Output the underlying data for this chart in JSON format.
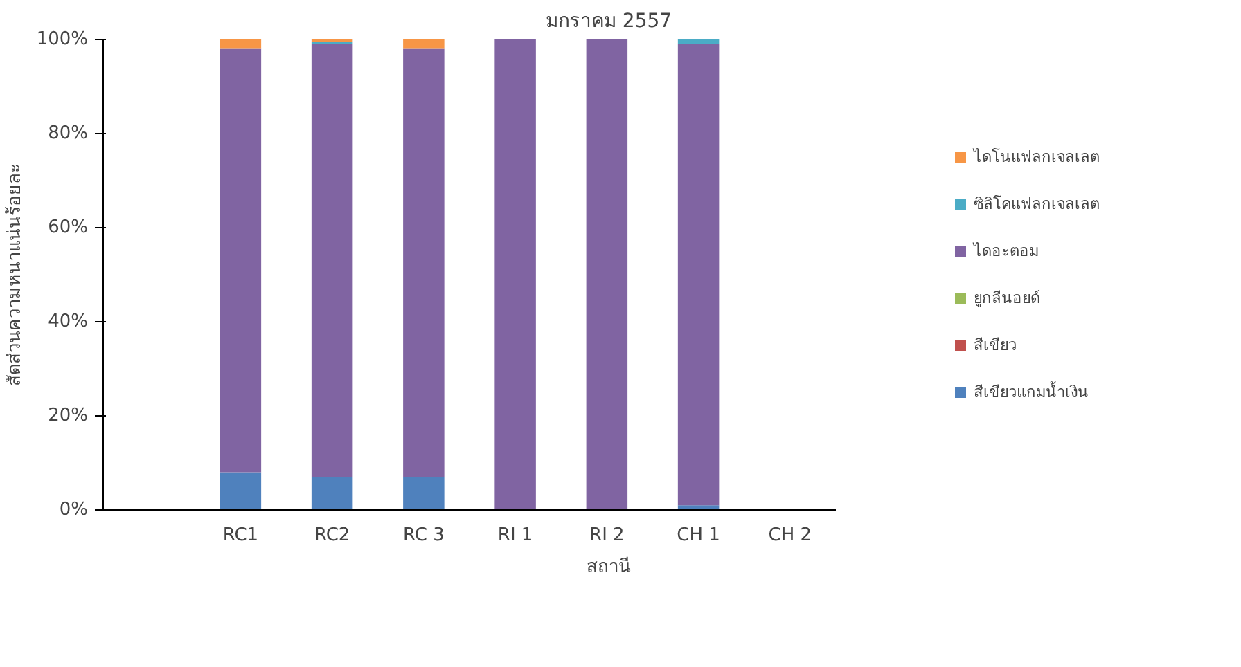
{
  "chart_data": {
    "type": "bar",
    "stacked": true,
    "title": "มกราคม 2557",
    "xlabel": "สถานี",
    "ylabel": "สัดส่วนความหนาแน่นร้อยละ",
    "categories": [
      null,
      "RC1",
      "RC2",
      "RC 3",
      "RI 1",
      "RI 2",
      "CH 1",
      "CH 2"
    ],
    "series": [
      {
        "name": "สีเขียวแกมน้ำเงิน",
        "color": "#4f81bd",
        "values": [
          0,
          8,
          7,
          7,
          0,
          0,
          1,
          0
        ]
      },
      {
        "name": "สีเขียว",
        "color": "#c0504d",
        "values": [
          0,
          0,
          0,
          0,
          0,
          0,
          0,
          0
        ]
      },
      {
        "name": "ยูกลีนอยด์",
        "color": "#9bbb59",
        "values": [
          0,
          0,
          0,
          0,
          0,
          0,
          0,
          0
        ]
      },
      {
        "name": "ไดอะตอม",
        "color": "#8064a2",
        "values": [
          0,
          90,
          92,
          91,
          100,
          100,
          98,
          0
        ]
      },
      {
        "name": "ซิลิโคแฟลกเจลเลต",
        "color": "#4bacc6",
        "values": [
          0,
          0,
          0.5,
          0,
          0,
          0,
          1,
          0
        ]
      },
      {
        "name": "ไดโนแฟลกเจลเลต",
        "color": "#f79646",
        "values": [
          0,
          2,
          0.5,
          2,
          0,
          0,
          0,
          0
        ]
      }
    ],
    "ylim": [
      0,
      100
    ],
    "yticks": [
      {
        "value": 0,
        "label": "0%"
      },
      {
        "value": 20,
        "label": "20%"
      },
      {
        "value": 40,
        "label": "40%"
      },
      {
        "value": 60,
        "label": "60%"
      },
      {
        "value": 80,
        "label": "80%"
      },
      {
        "value": 100,
        "label": "100%"
      }
    ],
    "legend": "right",
    "grid": false
  }
}
